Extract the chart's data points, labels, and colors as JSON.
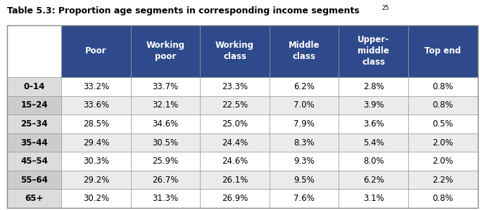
{
  "title": "Table 5.3: Proportion age segments in corresponding income segments",
  "superscript": "25",
  "col_headers": [
    "Poor",
    "Working\npoor",
    "Working\nclass",
    "Middle\nclass",
    "Upper-\nmiddle\nclass",
    "Top end"
  ],
  "row_headers": [
    "0–14",
    "15–24",
    "25–34",
    "35–44",
    "45–54",
    "55–64",
    "65+"
  ],
  "data": [
    [
      "33.2%",
      "33.7%",
      "23.3%",
      "6.2%",
      "2.8%",
      "0.8%"
    ],
    [
      "33.6%",
      "32.1%",
      "22.5%",
      "7.0%",
      "3.9%",
      "0.8%"
    ],
    [
      "28.5%",
      "34.6%",
      "25.0%",
      "7.9%",
      "3.6%",
      "0.5%"
    ],
    [
      "29.4%",
      "30.5%",
      "24.4%",
      "8.3%",
      "5.4%",
      "2.0%"
    ],
    [
      "30.3%",
      "25.9%",
      "24.6%",
      "9.3%",
      "8.0%",
      "2.0%"
    ],
    [
      "29.2%",
      "26.7%",
      "26.1%",
      "9.5%",
      "6.2%",
      "2.2%"
    ],
    [
      "30.2%",
      "31.3%",
      "26.9%",
      "7.6%",
      "3.1%",
      "0.8%"
    ]
  ],
  "header_bg_color": "#2E4A8B",
  "header_text_color": "#FFFFFF",
  "row_bg_odd": "#FFFFFF",
  "row_bg_even": "#EBEBEB",
  "row_header_bg_odd": "#DCDCDC",
  "row_header_bg_even": "#CCCCCC",
  "border_color": "#999999",
  "title_fontsize": 9,
  "header_fontsize": 8.5,
  "cell_fontsize": 8.5,
  "row_header_fontsize": 8.5
}
